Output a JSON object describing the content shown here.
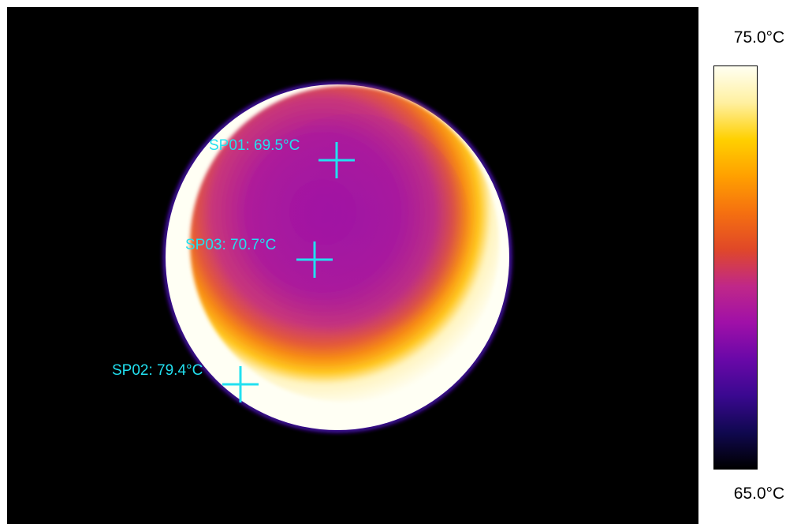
{
  "thermal_image": {
    "palette_name": "ironbow",
    "background_color": "#000000",
    "marker_color": "#22e0f0",
    "spots": [
      {
        "id": "SP01",
        "label": "SP01: 69.5°C",
        "value_c": 69.5
      },
      {
        "id": "SP03",
        "label": "SP03: 70.7°C",
        "value_c": 70.7
      },
      {
        "id": "SP02",
        "label": "SP02: 79.4°C",
        "value_c": 79.4
      }
    ]
  },
  "color_scale": {
    "max_label": "75.0°C",
    "min_label": "65.0°C",
    "max_value_c": 75.0,
    "min_value_c": 65.0,
    "gradient_colors": [
      "#fffff2",
      "#fff0a0",
      "#ffd000",
      "#ffa000",
      "#f57010",
      "#e04828",
      "#c02888",
      "#a010a8",
      "#6a08a8",
      "#3a0890",
      "#100850",
      "#000000"
    ]
  }
}
